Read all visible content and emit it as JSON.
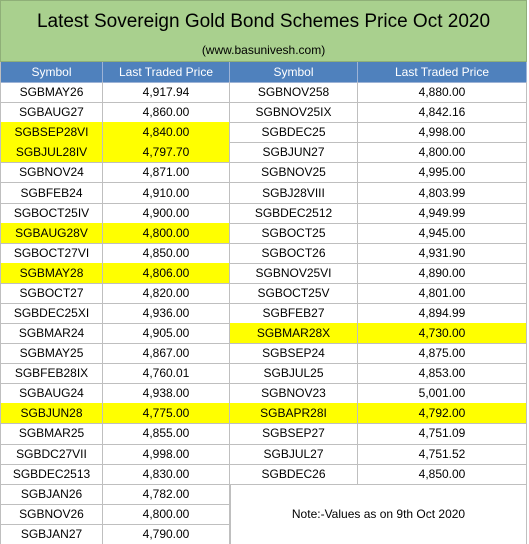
{
  "header": {
    "title": "Latest Sovereign Gold Bond Schemes Price Oct 2020",
    "subtitle": "(www.basunivesh.com)"
  },
  "table": {
    "columns": [
      "Symbol",
      "Last Traded Price",
      "Symbol",
      "Last Traded Price"
    ],
    "highlight_color": "#ffff00",
    "left": [
      {
        "symbol": "SGBMAY26",
        "price": "4,917.94",
        "highlight": false
      },
      {
        "symbol": "SGBAUG27",
        "price": "4,860.00",
        "highlight": false
      },
      {
        "symbol": "SGBSEP28VI",
        "price": "4,840.00",
        "highlight": true
      },
      {
        "symbol": "SGBJUL28IV",
        "price": "4,797.70",
        "highlight": true
      },
      {
        "symbol": "SGBNOV24",
        "price": "4,871.00",
        "highlight": false
      },
      {
        "symbol": "SGBFEB24",
        "price": "4,910.00",
        "highlight": false
      },
      {
        "symbol": "SGBOCT25IV",
        "price": "4,900.00",
        "highlight": false
      },
      {
        "symbol": "SGBAUG28V",
        "price": "4,800.00",
        "highlight": true
      },
      {
        "symbol": "SGBOCT27VI",
        "price": "4,850.00",
        "highlight": false
      },
      {
        "symbol": "SGBMAY28",
        "price": "4,806.00",
        "highlight": true
      },
      {
        "symbol": "SGBOCT27",
        "price": "4,820.00",
        "highlight": false
      },
      {
        "symbol": "SGBDEC25XI",
        "price": "4,936.00",
        "highlight": false
      },
      {
        "symbol": "SGBMAR24",
        "price": "4,905.00",
        "highlight": false
      },
      {
        "symbol": "SGBMAY25",
        "price": "4,867.00",
        "highlight": false
      },
      {
        "symbol": "SGBFEB28IX",
        "price": "4,760.01",
        "highlight": false
      },
      {
        "symbol": "SGBAUG24",
        "price": "4,938.00",
        "highlight": false
      },
      {
        "symbol": "SGBJUN28",
        "price": "4,775.00",
        "highlight": true
      },
      {
        "symbol": "SGBMAR25",
        "price": "4,855.00",
        "highlight": false
      },
      {
        "symbol": "SGBDC27VII",
        "price": "4,998.00",
        "highlight": false
      },
      {
        "symbol": "SGBDEC2513",
        "price": "4,830.00",
        "highlight": false
      },
      {
        "symbol": "SGBJAN26",
        "price": "4,782.00",
        "highlight": false
      },
      {
        "symbol": "SGBNOV26",
        "price": "4,800.00",
        "highlight": false
      },
      {
        "symbol": "SGBJAN27",
        "price": "4,790.00",
        "highlight": false
      }
    ],
    "right": [
      {
        "symbol": "SGBNOV258",
        "price": "4,880.00",
        "highlight": false
      },
      {
        "symbol": "SGBNOV25IX",
        "price": "4,842.16",
        "highlight": false
      },
      {
        "symbol": "SGBDEC25",
        "price": "4,998.00",
        "highlight": false
      },
      {
        "symbol": "SGBJUN27",
        "price": "4,800.00",
        "highlight": false
      },
      {
        "symbol": "SGBNOV25",
        "price": "4,995.00",
        "highlight": false
      },
      {
        "symbol": "SGBJ28VIII",
        "price": "4,803.99",
        "highlight": false
      },
      {
        "symbol": "SGBDEC2512",
        "price": "4,949.99",
        "highlight": false
      },
      {
        "symbol": "SGBOCT25",
        "price": "4,945.00",
        "highlight": false
      },
      {
        "symbol": "SGBOCT26",
        "price": "4,931.90",
        "highlight": false
      },
      {
        "symbol": "SGBNOV25VI",
        "price": "4,890.00",
        "highlight": false
      },
      {
        "symbol": "SGBOCT25V",
        "price": "4,801.00",
        "highlight": false
      },
      {
        "symbol": "SGBFEB27",
        "price": "4,894.99",
        "highlight": false
      },
      {
        "symbol": "SGBMAR28X",
        "price": "4,730.00",
        "highlight": true
      },
      {
        "symbol": "SGBSEP24",
        "price": "4,875.00",
        "highlight": false
      },
      {
        "symbol": "SGBJUL25",
        "price": "4,853.00",
        "highlight": false
      },
      {
        "symbol": "SGBNOV23",
        "price": "5,001.00",
        "highlight": false
      },
      {
        "symbol": "SGBAPR28I",
        "price": "4,792.00",
        "highlight": true
      },
      {
        "symbol": "SGBSEP27",
        "price": "4,751.09",
        "highlight": false
      },
      {
        "symbol": "SGBJUL27",
        "price": "4,751.52",
        "highlight": false
      },
      {
        "symbol": "SGBDEC26",
        "price": "4,850.00",
        "highlight": false
      }
    ],
    "note": "Note:-Values as on 9th Oct 2020"
  }
}
